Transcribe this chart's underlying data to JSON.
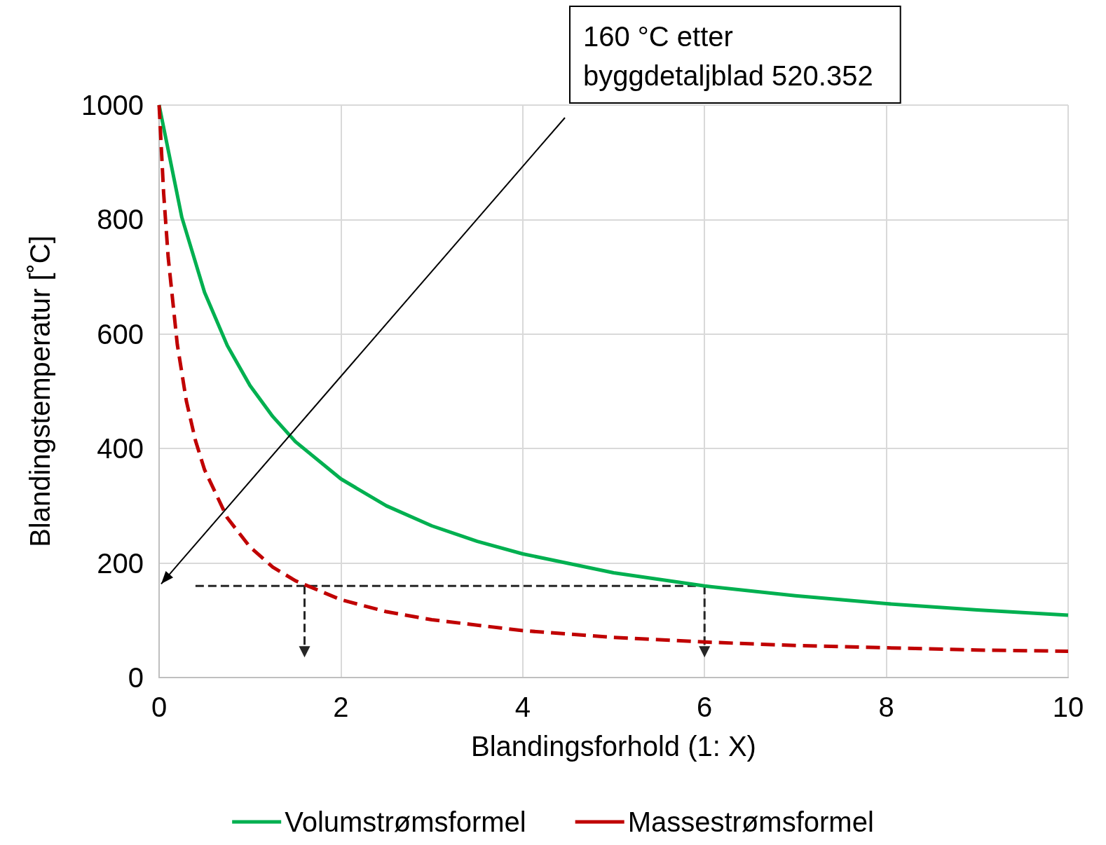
{
  "chart_data": {
    "type": "line",
    "xlabel": "Blandingsforhold (1: X)",
    "ylabel": "Blandingstemperatur [˚C]",
    "xlim": [
      0,
      10
    ],
    "ylim": [
      0,
      1000
    ],
    "xticks": [
      0,
      2,
      4,
      6,
      8,
      10
    ],
    "yticks": [
      0,
      200,
      400,
      600,
      800,
      1000
    ],
    "grid": true,
    "legend": "bottom",
    "marker": "none",
    "annotations": [
      "160 °C etter\nbyggdetaljblad 520.352"
    ],
    "series": [
      {
        "name": "Volumstrømsformel",
        "color": "#00b050",
        "line_style": "solid",
        "x": [
          0,
          0.25,
          0.5,
          0.75,
          1,
          1.25,
          1.5,
          2,
          2.5,
          3,
          3.5,
          4,
          5,
          6,
          7,
          8,
          9,
          10
        ],
        "values": [
          1000,
          804,
          673,
          580,
          510,
          456,
          412,
          347,
          300,
          265,
          238,
          216,
          183,
          160,
          143,
          129,
          118,
          109
        ]
      },
      {
        "name": "Massestrømsformel",
        "color": "#c00000",
        "line_style": "dashed",
        "x": [
          0,
          0.05,
          0.1,
          0.2,
          0.3,
          0.4,
          0.5,
          0.75,
          1,
          1.25,
          1.5,
          2,
          2.5,
          3,
          4,
          5,
          6,
          7,
          8,
          9,
          10
        ],
        "values": [
          1000,
          846,
          734,
          582,
          483,
          414,
          363,
          279,
          228,
          193,
          169,
          136,
          115,
          101,
          82,
          70,
          62,
          56,
          52,
          48,
          46
        ]
      },
      {
        "color": "#262626",
        "line_style": "dashed",
        "x": [
          0.4,
          6
        ],
        "values": [
          160,
          160
        ]
      },
      {
        "color": "#262626",
        "line_style": "dashed",
        "marker": "triangle",
        "x": [
          1.6,
          1.6
        ],
        "values": [
          160,
          45
        ]
      },
      {
        "color": "#262626",
        "line_style": "dashed",
        "marker": "triangle",
        "x": [
          6,
          6
        ],
        "values": [
          160,
          45
        ]
      }
    ]
  }
}
